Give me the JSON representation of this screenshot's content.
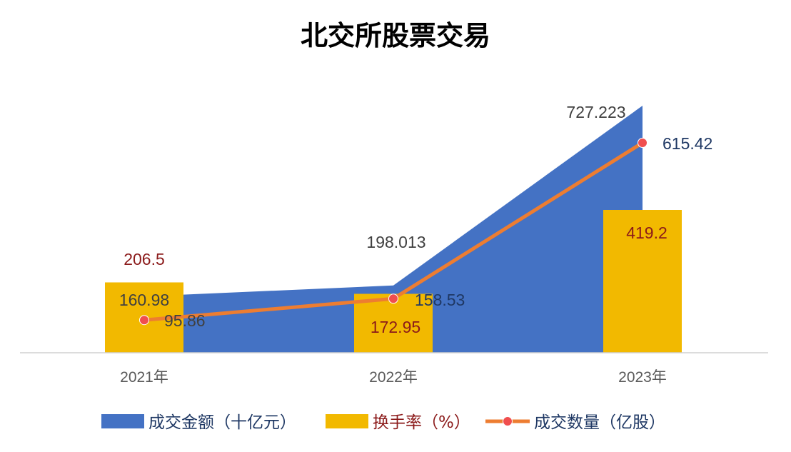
{
  "colors": {
    "amount": "#4472C4",
    "turnover": "#F2B900",
    "volume_line": "#ED7D31",
    "volume_marker": "#F04E4E",
    "label_dark": "#404040",
    "label_red": "#8B1A1A",
    "label_navy": "#1F3864",
    "legend_navy": "#1F3864",
    "legend_red": "#8B1A1A",
    "title": "#000000",
    "axis": "#D0D0D0"
  },
  "chart_data": {
    "type": "bar",
    "title": "北交所股票交易",
    "categories": [
      "2021年",
      "2022年",
      "2023年"
    ],
    "series": [
      {
        "name": "成交金额（十亿元）",
        "type": "area",
        "values": [
          160.98,
          198.013,
          727.223
        ],
        "labels": [
          "160.98",
          "198.013",
          "727.223"
        ]
      },
      {
        "name": "换手率（%）",
        "type": "bar",
        "values": [
          206.5,
          172.95,
          419.2
        ],
        "labels": [
          "206.5",
          "172.95",
          "419.2"
        ]
      },
      {
        "name": "成交数量（亿股）",
        "type": "line",
        "values": [
          95.86,
          158.53,
          615.42
        ],
        "labels": [
          "95.86",
          "158.53",
          "615.42"
        ]
      }
    ],
    "legend": "bottom",
    "grid": false
  }
}
